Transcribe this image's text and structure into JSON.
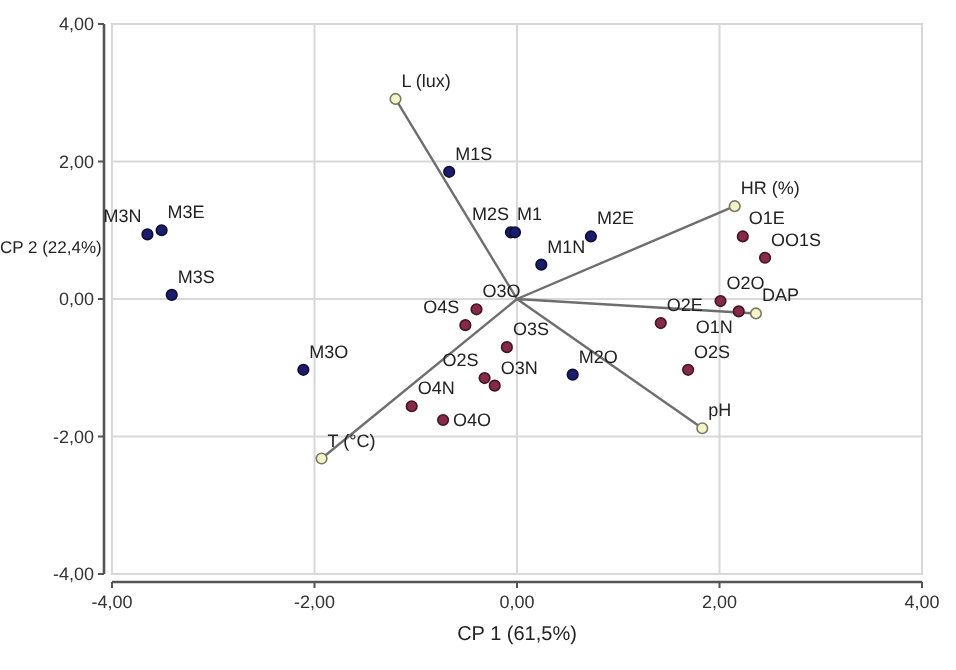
{
  "chart_data": {
    "type": "scatter",
    "xlabel": "CP 1 (61,5%)",
    "ylabel": "CP 2 (22,4%)",
    "xlim": [
      -4,
      4
    ],
    "ylim": [
      -4,
      4
    ],
    "xticks": [
      {
        "value": -4,
        "label": "-4,00"
      },
      {
        "value": -2,
        "label": "-2,00"
      },
      {
        "value": 0,
        "label": "0,00"
      },
      {
        "value": 2,
        "label": "2,00"
      },
      {
        "value": 4,
        "label": "4,00"
      }
    ],
    "yticks": [
      {
        "value": -4,
        "label": "-4,00"
      },
      {
        "value": -2,
        "label": "-2,00"
      },
      {
        "value": 0,
        "label": "0,00"
      },
      {
        "value": 2,
        "label": "2,00"
      },
      {
        "value": 4,
        "label": "4,00"
      }
    ],
    "grid": true,
    "marker": "circle",
    "series": [
      {
        "type": "line",
        "marker": "none",
        "color": "#6e6e6e",
        "x": [
          0,
          -1.2,
          0,
          2.15,
          0,
          2.36,
          0,
          1.83,
          0,
          -1.93
        ],
        "values": [
          0,
          2.91,
          0,
          1.35,
          0,
          -0.21,
          0,
          -1.88,
          0,
          -2.32
        ]
      },
      {
        "color": "#1c1c6c",
        "x": [
          -3.65,
          -3.51,
          -3.41,
          -2.11,
          -0.67,
          -0.06,
          -0.02,
          0.73,
          0.24,
          0.55
        ],
        "values": [
          0.94,
          1.0,
          0.06,
          -1.03,
          1.85,
          0.97,
          0.97,
          0.91,
          0.5,
          -1.1
        ],
        "value_labels": [
          "M3N",
          "M3E",
          "M3S",
          "M3O",
          "M1S",
          "M1",
          "M2S",
          "M2E",
          "M1N",
          "M2O"
        ]
      },
      {
        "color": "#862a4a",
        "x": [
          1.42,
          1.69,
          2.01,
          2.19,
          2.23,
          2.45,
          -0.1,
          -0.22,
          -0.32,
          -0.51,
          -1.04,
          -0.73,
          -0.4
        ],
        "values": [
          -0.35,
          -1.03,
          -0.03,
          -0.18,
          0.91,
          0.6,
          -0.7,
          -1.26,
          -1.15,
          -0.38,
          -1.56,
          -1.76,
          -0.15
        ],
        "value_labels": [
          "O2E",
          "O2S",
          "O2O",
          "O1N",
          "O1E",
          "OO1S",
          "O3S",
          "O3N",
          "O2S",
          "O4S",
          "O4N",
          "O4O",
          "O3O"
        ]
      },
      {
        "color": "#f4f4c8",
        "x": [
          -1.2,
          2.15,
          2.36,
          1.83,
          -1.93
        ],
        "values": [
          2.91,
          1.35,
          -0.21,
          -1.88,
          -2.32
        ],
        "value_labels": [
          "L (lux)",
          "HR (%)",
          "DAP",
          "pH",
          "T (°C)"
        ]
      }
    ]
  }
}
